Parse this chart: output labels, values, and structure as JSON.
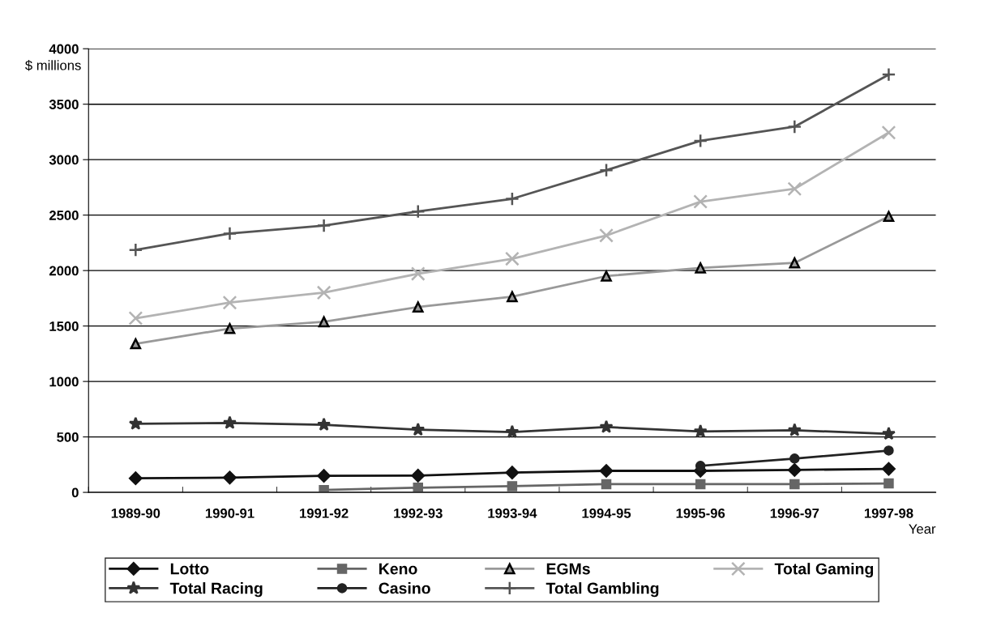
{
  "chart_data": {
    "type": "line",
    "ylabel": "$ millions",
    "xlabel": "Year",
    "categories": [
      "1989-90",
      "1990-91",
      "1991-92",
      "1992-93",
      "1993-94",
      "1994-95",
      "1995-96",
      "1996-97",
      "1997-98"
    ],
    "series": [
      {
        "name": "Lotto",
        "color": "#111111",
        "marker": "diamond",
        "values": [
          127,
          133,
          149,
          151,
          178,
          194,
          194,
          202,
          212
        ]
      },
      {
        "name": "Keno",
        "color": "#666666",
        "marker": "square",
        "values": [
          null,
          null,
          21,
          42,
          56,
          74,
          74,
          74,
          80
        ]
      },
      {
        "name": "EGMs",
        "color": "#999999",
        "marker": "triangle",
        "values": [
          1340,
          1477,
          1538,
          1671,
          1764,
          1950,
          2024,
          2069,
          2488
        ]
      },
      {
        "name": "Total Gaming",
        "color": "#b3b3b3",
        "marker": "cross",
        "values": [
          1570,
          1711,
          1801,
          1971,
          2106,
          2316,
          2621,
          2737,
          3244
        ]
      },
      {
        "name": "Total Racing",
        "color": "#333333",
        "marker": "star",
        "values": [
          618,
          626,
          610,
          565,
          544,
          589,
          549,
          560,
          528
        ]
      },
      {
        "name": "Casino",
        "color": "#222222",
        "marker": "circle",
        "values": [
          null,
          null,
          null,
          null,
          null,
          null,
          239,
          305,
          377
        ]
      },
      {
        "name": "Total Gambling",
        "color": "#555555",
        "marker": "plus",
        "values": [
          2186,
          2334,
          2406,
          2533,
          2647,
          2905,
          3170,
          3297,
          3767
        ]
      }
    ],
    "ylim": [
      0,
      4000
    ],
    "yticks": [
      0,
      500,
      1000,
      1500,
      2000,
      2500,
      3000,
      3500,
      4000
    ],
    "grid": "y",
    "legend": "bottom",
    "line_style": "solid"
  }
}
